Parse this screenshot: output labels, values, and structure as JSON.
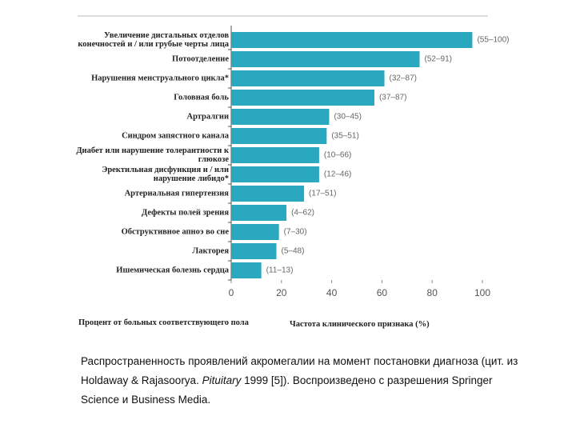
{
  "chart_data": {
    "type": "bar",
    "orientation": "horizontal",
    "categories": [
      "Увеличение дистальных отделов конечностей и / или грубые черты лица",
      "Потоотделение",
      "Нарушения менструального цикла*",
      "Головная боль",
      "Артралгии",
      "Синдром запястного канала",
      "Диабет или нарушение толерантности к глюкозе",
      "Эректильная дисфункция и / или нарушение либидо*",
      "Артериальная гипертензия",
      "Дефекты полей зрения",
      "Обструктивное апноэ во сне",
      "Лакторея",
      "Ишемическая болезнь сердца"
    ],
    "values": [
      96,
      75,
      61,
      57,
      39,
      38,
      35,
      35,
      29,
      22,
      19,
      18,
      12
    ],
    "ranges": [
      "(55–100)",
      "(52–91)",
      "(32–87)",
      "(37–87)",
      "(30–45)",
      "(35–51)",
      "(10–66)",
      "(12–46)",
      "(17–51)",
      "(4–62)",
      "(7–30)",
      "(5–48)",
      "(11–13)"
    ],
    "color": "#2aa8bf",
    "xlim": [
      0,
      100
    ],
    "xticks": [
      0,
      20,
      40,
      60,
      80,
      100
    ],
    "x_label": "Частота клинического признака (%)",
    "y_label": "Процент от больных соответствующего пола"
  },
  "caption": {
    "parts": [
      "Распространенность проявлений акромегалии на момент постановки диагноза (цит. из Holdaway & Rajasoorya. ",
      "Pituitary",
      " 1999 [5]). Воспроизведено с разрешения Springer Science и Business Media."
    ]
  }
}
